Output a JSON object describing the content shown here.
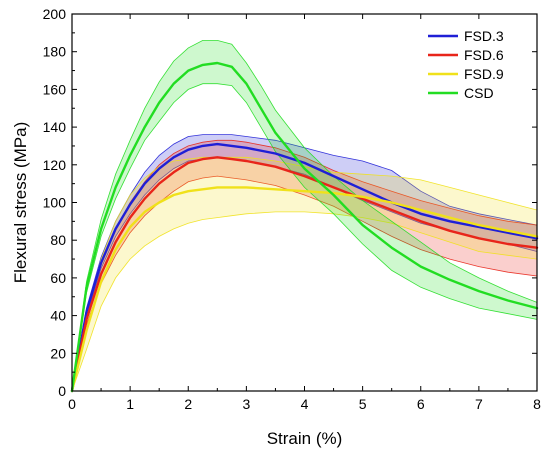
{
  "chart_data": {
    "type": "line",
    "title": "",
    "xlabel": "Strain (%)",
    "ylabel": "Flexural stress (MPa)",
    "xlim": [
      0,
      8
    ],
    "ylim": [
      0,
      200
    ],
    "xticks": [
      0,
      1,
      2,
      3,
      4,
      5,
      6,
      7,
      8
    ],
    "yticks": [
      0,
      20,
      40,
      60,
      80,
      100,
      120,
      140,
      160,
      180,
      200
    ],
    "grid": false,
    "legend_position": "top-right",
    "series": [
      {
        "name": "FSD.3",
        "color": "#1f1fd6",
        "x": [
          0,
          0.25,
          0.5,
          0.75,
          1,
          1.25,
          1.5,
          1.75,
          2,
          2.25,
          2.5,
          2.75,
          3,
          3.5,
          4,
          4.5,
          5,
          5.5,
          6,
          6.5,
          7,
          7.5,
          8
        ],
        "mean": [
          0,
          42,
          68,
          86,
          99,
          110,
          118,
          124,
          128,
          130,
          131,
          130,
          129,
          126,
          121,
          114,
          107,
          100,
          94,
          90,
          87,
          84,
          81
        ],
        "lower": [
          0,
          40,
          65,
          82,
          94,
          104,
          112,
          118,
          122,
          123,
          124,
          123,
          122,
          119,
          115,
          108,
          101,
          95,
          89,
          85,
          81,
          78,
          74
        ],
        "upper": [
          0,
          44,
          71,
          90,
          104,
          116,
          125,
          131,
          135,
          136,
          136,
          136,
          135,
          133,
          129,
          125,
          122,
          117,
          106,
          98,
          94,
          91,
          88
        ]
      },
      {
        "name": "FSD.6",
        "color": "#e8251a",
        "x": [
          0,
          0.25,
          0.5,
          0.75,
          1,
          1.25,
          1.5,
          1.75,
          2,
          2.25,
          2.5,
          2.75,
          3,
          3.5,
          4,
          4.5,
          5,
          5.5,
          6,
          6.5,
          7,
          7.5,
          8
        ],
        "mean": [
          0,
          38,
          62,
          79,
          92,
          102,
          110,
          116,
          121,
          123,
          124,
          123,
          122,
          119,
          114,
          108,
          102,
          96,
          90,
          85,
          81,
          78,
          76
        ],
        "lower": [
          0,
          35,
          57,
          72,
          84,
          93,
          100,
          106,
          111,
          113,
          114,
          113,
          112,
          109,
          104,
          98,
          90,
          82,
          75,
          70,
          66,
          63,
          61
        ],
        "upper": [
          0,
          41,
          67,
          86,
          100,
          111,
          120,
          126,
          130,
          132,
          133,
          133,
          132,
          129,
          124,
          117,
          111,
          106,
          101,
          97,
          93,
          90,
          88
        ]
      },
      {
        "name": "FSD.9",
        "color": "#f0e11a",
        "x": [
          0,
          0.25,
          0.5,
          0.75,
          1,
          1.25,
          1.5,
          1.75,
          2,
          2.25,
          2.5,
          2.75,
          3,
          3.5,
          4,
          4.5,
          5,
          5.5,
          6,
          6.5,
          7,
          7.5,
          8
        ],
        "mean": [
          0,
          32,
          58,
          75,
          87,
          95,
          100,
          104,
          106,
          107,
          108,
          108,
          108,
          107,
          106,
          105,
          103,
          100,
          96,
          92,
          88,
          85,
          82
        ],
        "lower": [
          0,
          22,
          45,
          60,
          70,
          77,
          82,
          86,
          89,
          91,
          92,
          93,
          94,
          95,
          95,
          94,
          92,
          89,
          84,
          79,
          74,
          72,
          70
        ],
        "upper": [
          0,
          40,
          70,
          90,
          104,
          113,
          119,
          122,
          123,
          124,
          124,
          124,
          124,
          122,
          119,
          116,
          115,
          114,
          112,
          108,
          104,
          100,
          96
        ]
      },
      {
        "name": "CSD",
        "color": "#22dd22",
        "x": [
          0,
          0.25,
          0.5,
          0.75,
          1,
          1.25,
          1.5,
          1.75,
          2,
          2.25,
          2.5,
          2.75,
          3,
          3.25,
          3.5,
          4,
          4.5,
          5,
          5.5,
          6,
          6.5,
          7,
          7.5,
          8
        ],
        "mean": [
          0,
          55,
          86,
          108,
          125,
          140,
          153,
          163,
          170,
          173,
          174,
          172,
          163,
          150,
          137,
          118,
          104,
          88,
          76,
          66,
          59,
          53,
          48,
          44
        ],
        "lower": [
          0,
          52,
          82,
          102,
          118,
          133,
          143,
          153,
          160,
          163,
          163,
          162,
          153,
          140,
          127,
          108,
          94,
          78,
          64,
          55,
          49,
          44,
          41,
          38
        ],
        "upper": [
          0,
          58,
          91,
          115,
          133,
          150,
          164,
          175,
          182,
          186,
          186,
          184,
          174,
          162,
          149,
          129,
          114,
          101,
          90,
          79,
          68,
          60,
          53,
          47
        ]
      }
    ]
  }
}
